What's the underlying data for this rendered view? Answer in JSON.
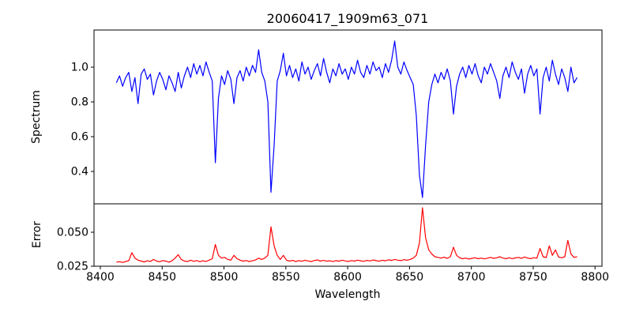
{
  "colors": {
    "background": "#ffffff",
    "axis": "#000000",
    "text": "#000000",
    "spectrum_line": "#0000ff",
    "error_line": "#ff0000"
  },
  "chart_data": {
    "type": "line",
    "title": "20060417_1909m63_071",
    "xlabel": "Wavelength",
    "grid": false,
    "legend": false,
    "xlim": [
      8394.9,
      8805.6
    ],
    "xticks": [
      8400,
      8450,
      8500,
      8550,
      8600,
      8650,
      8700,
      8750,
      8800
    ],
    "xtick_labels": [
      "8400",
      "8450",
      "8500",
      "8550",
      "8600",
      "8650",
      "8700",
      "8750",
      "8800"
    ],
    "x_start": 8413,
    "x_step": 2.5,
    "panels": [
      {
        "name": "spectrum",
        "ylabel": "Spectrum",
        "color": "#0000ff",
        "ylim": [
          0.2136,
          1.2136
        ],
        "yticks": [
          0.4,
          0.6,
          0.8,
          1.0
        ],
        "ytick_labels": [
          "0.4",
          "0.6",
          "0.8",
          "1.0"
        ],
        "values": [
          0.91,
          0.95,
          0.89,
          0.94,
          0.97,
          0.86,
          0.94,
          0.79,
          0.96,
          0.99,
          0.93,
          0.96,
          0.84,
          0.92,
          0.97,
          0.93,
          0.87,
          0.95,
          0.91,
          0.86,
          0.97,
          0.88,
          0.95,
          1.0,
          0.94,
          1.02,
          0.96,
          1.01,
          0.95,
          1.03,
          0.97,
          0.92,
          0.45,
          0.82,
          0.95,
          0.9,
          0.98,
          0.93,
          0.79,
          0.94,
          0.98,
          0.92,
          1.0,
          0.95,
          1.01,
          0.97,
          1.1,
          0.97,
          0.92,
          0.8,
          0.28,
          0.55,
          0.92,
          0.98,
          1.08,
          0.95,
          1.01,
          0.94,
          0.99,
          0.92,
          1.03,
          0.96,
          1.0,
          0.93,
          0.98,
          1.02,
          0.95,
          1.05,
          0.97,
          0.91,
          0.99,
          0.95,
          1.02,
          0.96,
          0.99,
          0.93,
          1.0,
          0.96,
          1.04,
          0.97,
          0.94,
          1.01,
          0.96,
          1.03,
          0.98,
          1.0,
          0.94,
          1.02,
          0.97,
          1.04,
          1.15,
          1.0,
          0.96,
          1.03,
          0.98,
          0.94,
          0.9,
          0.72,
          0.38,
          0.25,
          0.55,
          0.8,
          0.9,
          0.96,
          0.91,
          0.97,
          0.93,
          0.99,
          0.92,
          0.73,
          0.89,
          0.96,
          1.0,
          0.94,
          1.01,
          0.96,
          1.02,
          0.95,
          0.91,
          1.0,
          0.96,
          1.02,
          0.97,
          0.92,
          0.82,
          0.95,
          1.0,
          0.94,
          1.03,
          0.97,
          0.93,
          0.99,
          0.85,
          0.96,
          1.01,
          0.95,
          0.99,
          0.73,
          0.94,
          1.0,
          0.92,
          1.04,
          0.96,
          0.9,
          0.99,
          0.94,
          0.86,
          1.0,
          0.91,
          0.94
        ]
      },
      {
        "name": "error",
        "ylabel": "Error",
        "color": "#ff0000",
        "ylim": [
          0.025,
          0.0709
        ],
        "yticks": [
          0.025,
          0.05
        ],
        "ytick_labels": [
          "0.025",
          "0.050"
        ],
        "values": [
          0.028,
          0.0283,
          0.0278,
          0.0285,
          0.029,
          0.035,
          0.031,
          0.0295,
          0.0288,
          0.0282,
          0.029,
          0.0285,
          0.03,
          0.0288,
          0.0283,
          0.0292,
          0.0287,
          0.028,
          0.029,
          0.031,
          0.0335,
          0.03,
          0.0288,
          0.0285,
          0.0295,
          0.0286,
          0.0292,
          0.0283,
          0.029,
          0.0285,
          0.0295,
          0.0305,
          0.041,
          0.033,
          0.031,
          0.0315,
          0.03,
          0.0295,
          0.033,
          0.0305,
          0.0295,
          0.0288,
          0.0292,
          0.0285,
          0.029,
          0.0296,
          0.031,
          0.03,
          0.031,
          0.033,
          0.054,
          0.04,
          0.033,
          0.03,
          0.033,
          0.0295,
          0.0288,
          0.0293,
          0.0285,
          0.0291,
          0.0287,
          0.0294,
          0.0289,
          0.0284,
          0.0292,
          0.0296,
          0.0288,
          0.0293,
          0.0287,
          0.029,
          0.0284,
          0.0291,
          0.0287,
          0.0294,
          0.0289,
          0.0285,
          0.0292,
          0.0288,
          0.0295,
          0.029,
          0.0286,
          0.0293,
          0.0289,
          0.0296,
          0.0291,
          0.0287,
          0.0294,
          0.029,
          0.0297,
          0.0293,
          0.03,
          0.0295,
          0.0291,
          0.0298,
          0.0294,
          0.03,
          0.031,
          0.033,
          0.042,
          0.068,
          0.046,
          0.037,
          0.034,
          0.032,
          0.0315,
          0.031,
          0.0316,
          0.0308,
          0.032,
          0.039,
          0.033,
          0.0312,
          0.0305,
          0.031,
          0.0303,
          0.0308,
          0.0312,
          0.0305,
          0.031,
          0.0304,
          0.0309,
          0.0315,
          0.0308,
          0.0312,
          0.032,
          0.031,
          0.0305,
          0.0312,
          0.0306,
          0.0311,
          0.0315,
          0.0308,
          0.0318,
          0.031,
          0.0306,
          0.0313,
          0.0309,
          0.038,
          0.032,
          0.0314,
          0.04,
          0.033,
          0.037,
          0.0318,
          0.0312,
          0.032,
          0.044,
          0.034,
          0.0315,
          0.032
        ]
      }
    ]
  }
}
